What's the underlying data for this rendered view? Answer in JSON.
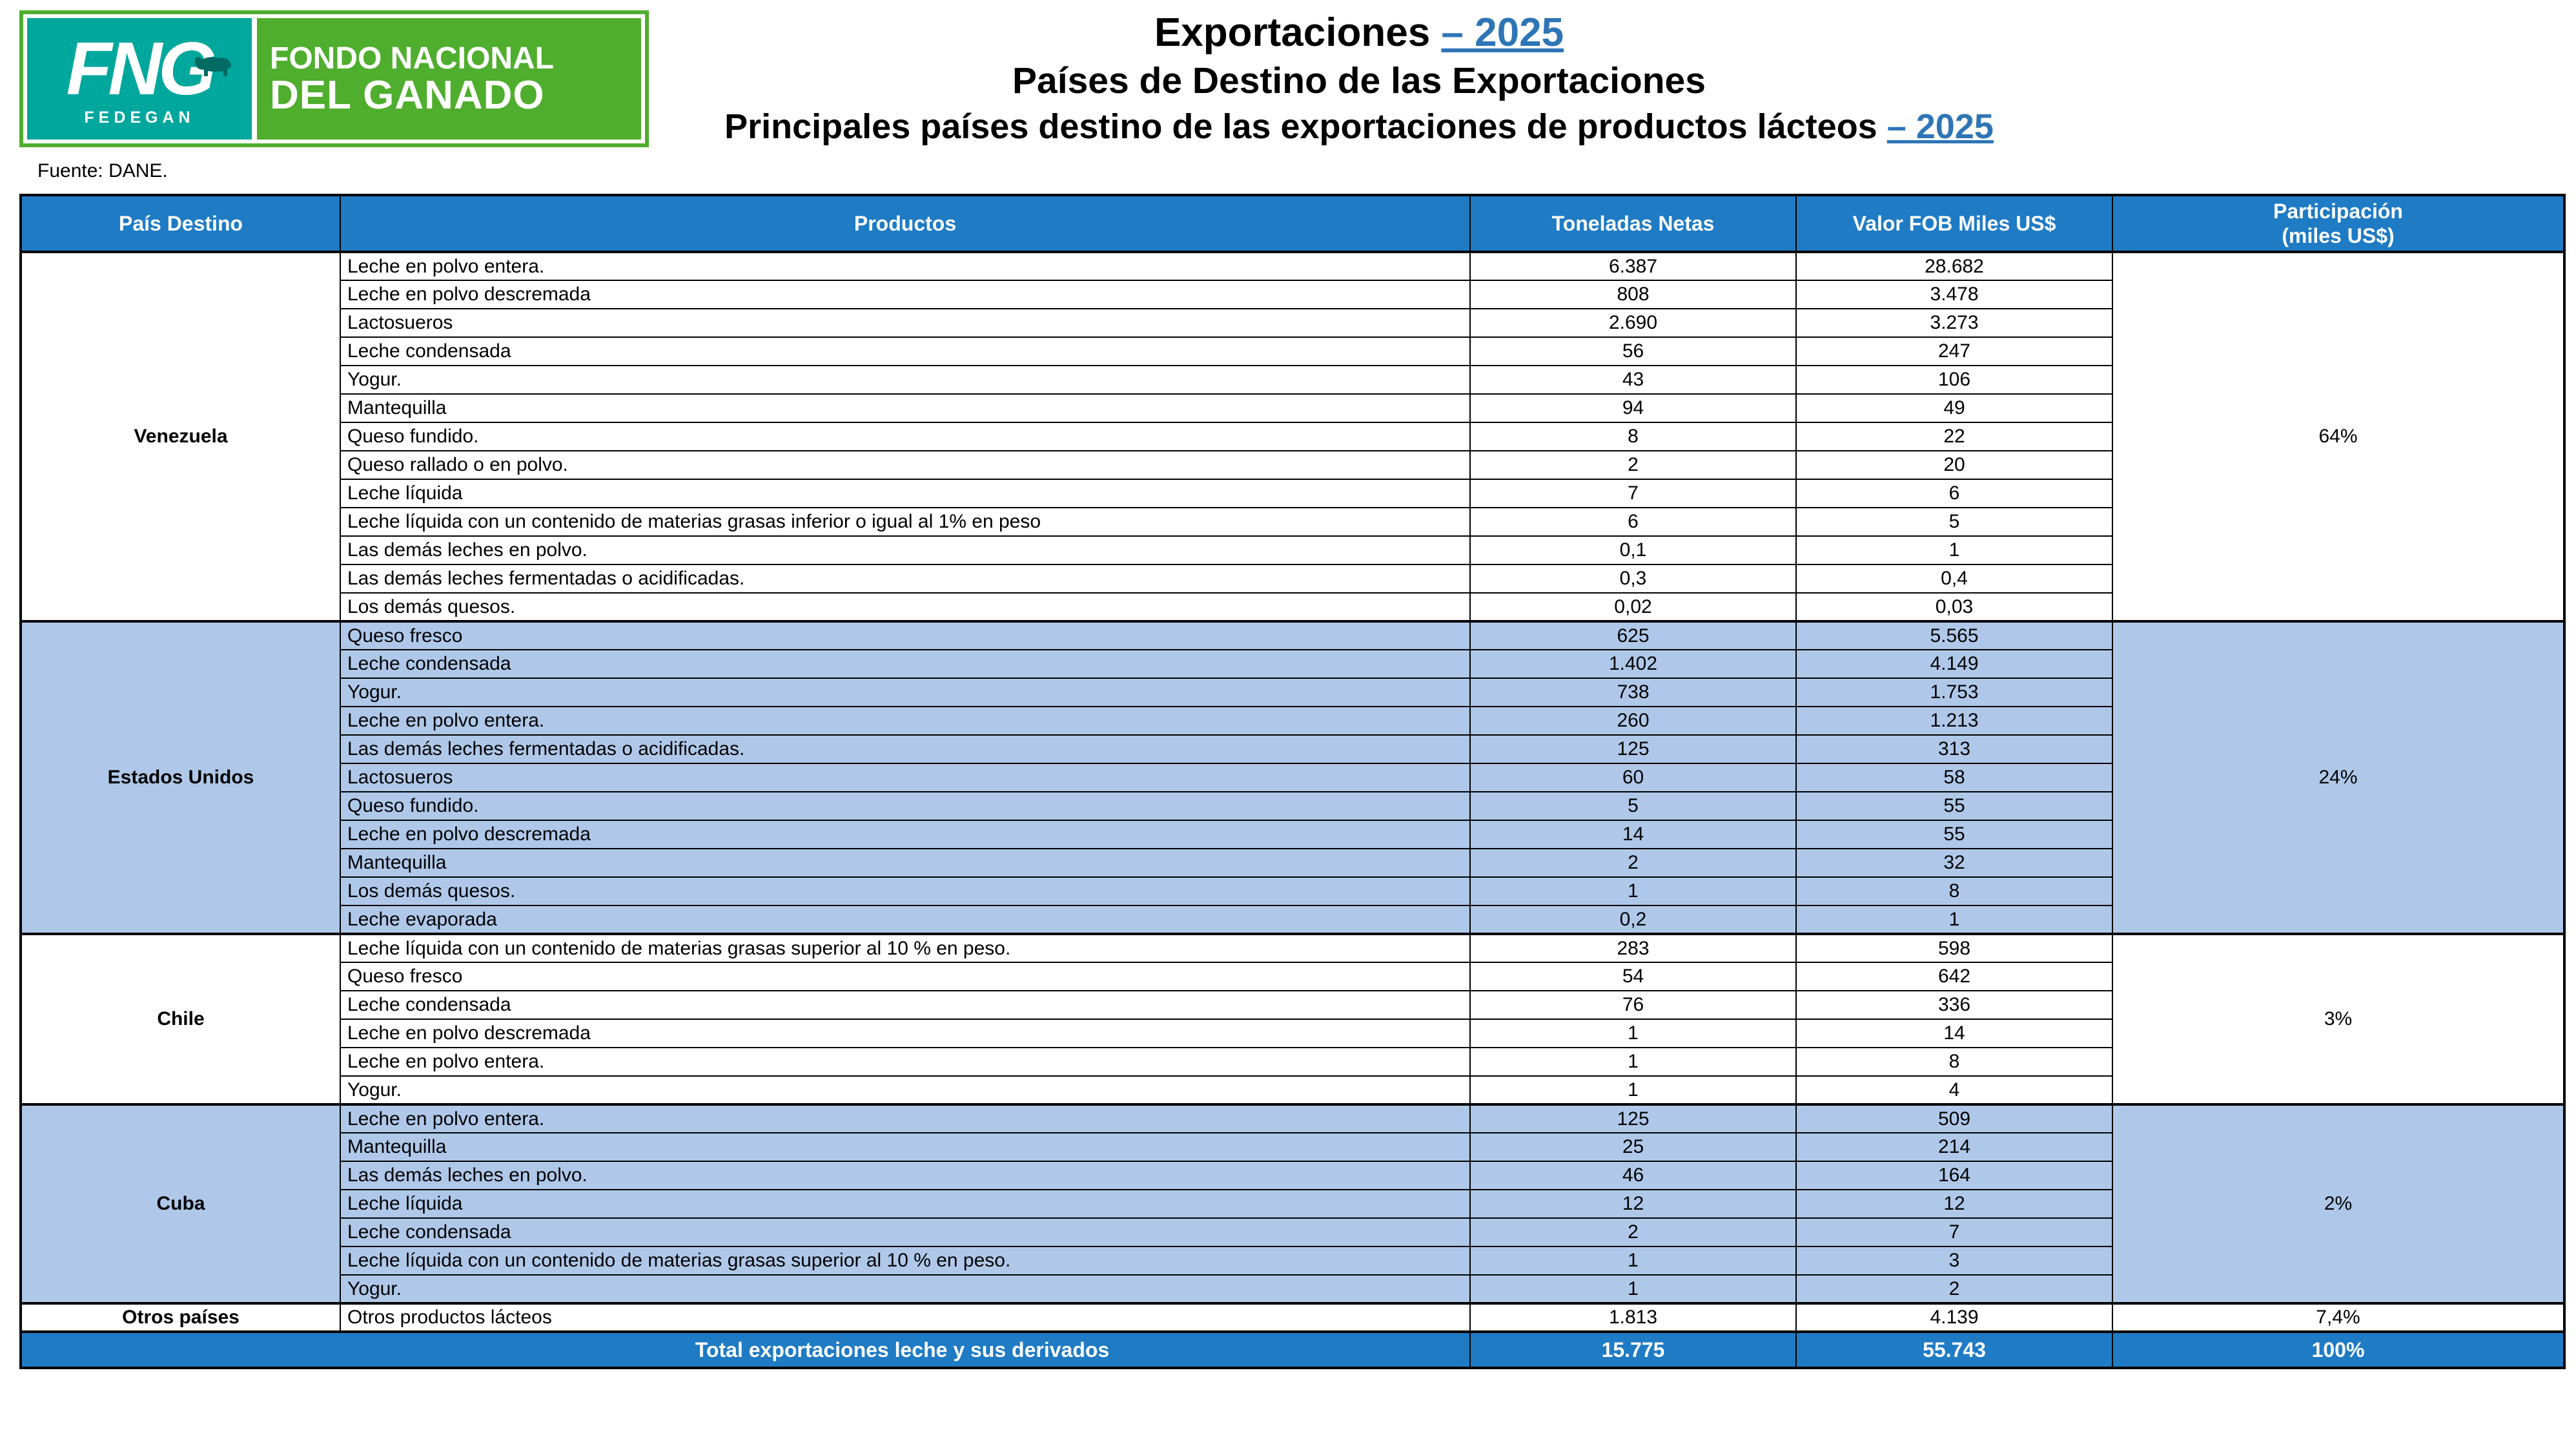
{
  "logo": {
    "fng": "FNG",
    "fedegan": "FEDEGAN",
    "line1": "FONDO NACIONAL",
    "line2": "DEL GANADO"
  },
  "source": "Fuente: DANE.",
  "titles": {
    "line1_black": "Exportaciones ",
    "line1_link": "– 2025",
    "line2": "Países de Destino de las Exportaciones",
    "line3_black": "Principales países destino de las exportaciones de productos lácteos ",
    "line3_link": "– 2025"
  },
  "colors": {
    "header_blue": "#1E7BC4",
    "light_blue_row": "#AFC8EA",
    "link_blue": "#2E75B6",
    "logo_teal": "#00A79C",
    "logo_green": "#4FAE2D"
  },
  "table": {
    "headers": [
      "País Destino",
      "Productos",
      "Toneladas Netas",
      "Valor FOB Miles US$",
      "Participación\n(miles US$)"
    ],
    "groups": [
      {
        "country": "Venezuela",
        "participation": "64%",
        "shaded": false,
        "rows": [
          [
            "Leche en polvo entera.",
            "6.387",
            "28.682"
          ],
          [
            "Leche en polvo descremada",
            "808",
            "3.478"
          ],
          [
            "Lactosueros",
            "2.690",
            "3.273"
          ],
          [
            "Leche condensada",
            "56",
            "247"
          ],
          [
            "Yogur.",
            "43",
            "106"
          ],
          [
            "Mantequilla",
            "94",
            "49"
          ],
          [
            "Queso fundido.",
            "8",
            "22"
          ],
          [
            "Queso rallado o en polvo.",
            "2",
            "20"
          ],
          [
            "Leche líquida",
            "7",
            "6"
          ],
          [
            "Leche líquida con un contenido de materias grasas inferior o igual al 1% en peso",
            "6",
            "5"
          ],
          [
            "Las demás leches en polvo.",
            "0,1",
            "1"
          ],
          [
            "Las demás leches fermentadas o acidificadas.",
            "0,3",
            "0,4"
          ],
          [
            "Los demás quesos.",
            "0,02",
            "0,03"
          ]
        ]
      },
      {
        "country": "Estados Unidos",
        "participation": "24%",
        "shaded": true,
        "rows": [
          [
            "Queso fresco",
            "625",
            "5.565"
          ],
          [
            "Leche condensada",
            "1.402",
            "4.149"
          ],
          [
            "Yogur.",
            "738",
            "1.753"
          ],
          [
            "Leche en polvo entera.",
            "260",
            "1.213"
          ],
          [
            "Las demás leches fermentadas o acidificadas.",
            "125",
            "313"
          ],
          [
            "Lactosueros",
            "60",
            "58"
          ],
          [
            "Queso fundido.",
            "5",
            "55"
          ],
          [
            "Leche en polvo descremada",
            "14",
            "55"
          ],
          [
            "Mantequilla",
            "2",
            "32"
          ],
          [
            "Los demás quesos.",
            "1",
            "8"
          ],
          [
            "Leche evaporada",
            "0,2",
            "1"
          ]
        ]
      },
      {
        "country": "Chile",
        "participation": "3%",
        "shaded": false,
        "rows": [
          [
            "Leche líquida con un contenido de materias grasas superior al 10 % en peso.",
            "283",
            "598"
          ],
          [
            "Queso fresco",
            "54",
            "642"
          ],
          [
            "Leche condensada",
            "76",
            "336"
          ],
          [
            "Leche en polvo descremada",
            "1",
            "14"
          ],
          [
            "Leche en polvo entera.",
            "1",
            "8"
          ],
          [
            "Yogur.",
            "1",
            "4"
          ]
        ]
      },
      {
        "country": "Cuba",
        "participation": "2%",
        "shaded": true,
        "rows": [
          [
            "Leche en polvo entera.",
            "125",
            "509"
          ],
          [
            "Mantequilla",
            "25",
            "214"
          ],
          [
            "Las demás leches en polvo.",
            "46",
            "164"
          ],
          [
            "Leche líquida",
            "12",
            "12"
          ],
          [
            "Leche condensada",
            "2",
            "7"
          ],
          [
            "Leche líquida con un contenido de materias grasas superior al 10 % en peso.",
            "1",
            "3"
          ],
          [
            "Yogur.",
            "1",
            "2"
          ]
        ]
      },
      {
        "country": "Otros países",
        "participation": "7,4%",
        "shaded": false,
        "rows": [
          [
            "Otros productos lácteos",
            "1.813",
            "4.139"
          ]
        ]
      }
    ],
    "total": {
      "label": "Total exportaciones leche y sus derivados",
      "tons": "15.775",
      "fob": "55.743",
      "participation": "100%"
    }
  }
}
